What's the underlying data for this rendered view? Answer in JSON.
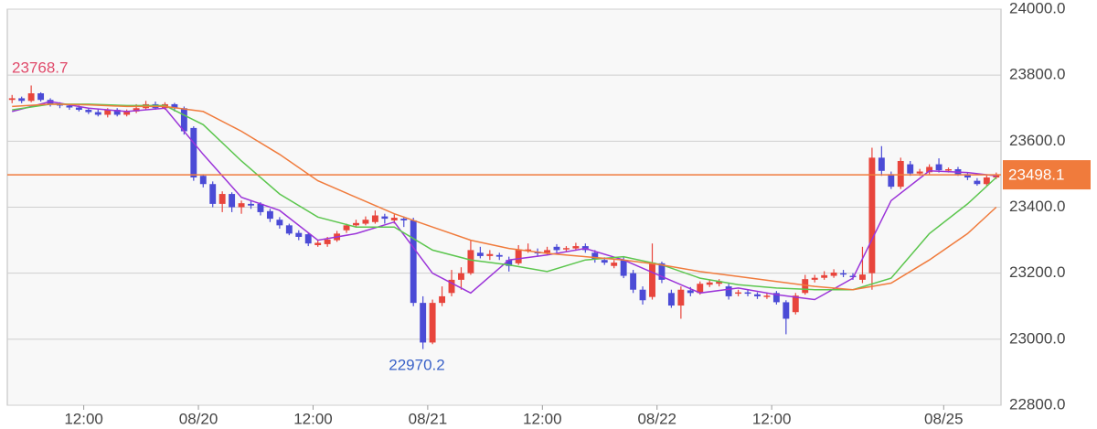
{
  "chart_data": {
    "type": "candlestick",
    "xlim": [
      0,
      104
    ],
    "xticks": [
      {
        "value": 8,
        "label": "12:00"
      },
      {
        "value": 20,
        "label": "08/20"
      },
      {
        "value": 32,
        "label": "12:00"
      },
      {
        "value": 44,
        "label": "08/21"
      },
      {
        "value": 56,
        "label": "12:00"
      },
      {
        "value": 68,
        "label": "08/22"
      },
      {
        "value": 80,
        "label": "12:00"
      },
      {
        "value": 98,
        "label": "08/25"
      }
    ],
    "ylim": [
      22800,
      24000
    ],
    "yticks": [
      {
        "value": 22800,
        "label": "22800.0"
      },
      {
        "value": 23000,
        "label": "23000.0"
      },
      {
        "value": 23200,
        "label": "23200.0"
      },
      {
        "value": 23400,
        "label": "23400.0"
      },
      {
        "value": 23600,
        "label": "23600.0"
      },
      {
        "value": 23800,
        "label": "23800.0"
      },
      {
        "value": 24000,
        "label": "24000.0"
      }
    ],
    "grid": true,
    "up_color": "#e8453c",
    "down_color": "#4b4bd6",
    "open": [
      23725,
      23730,
      23722,
      23745,
      23725,
      23712,
      23708,
      23702,
      23695,
      23688,
      23680,
      23695,
      23680,
      23690,
      23700,
      23712,
      23700,
      23712,
      23700,
      23640,
      23495,
      23470,
      23410,
      23440,
      23400,
      23410,
      23410,
      23388,
      23362,
      23345,
      23322,
      23318,
      23285,
      23288,
      23300,
      23330,
      23345,
      23350,
      23355,
      23372,
      23360,
      23365,
      23360,
      23110,
      22990,
      23110,
      23140,
      23180,
      23200,
      23262,
      23252,
      23255,
      23240,
      23230,
      23268,
      23265,
      23262,
      23280,
      23272,
      23275,
      23282,
      23262,
      23240,
      23222,
      23240,
      23200,
      23150,
      23128,
      23230,
      23140,
      23102,
      23148,
      23140,
      23165,
      23168,
      23160,
      23138,
      23142,
      23136,
      23130,
      23140,
      23112,
      23082,
      23140,
      23180,
      23186,
      23192,
      23200,
      23192,
      23180,
      23200,
      23550,
      23500,
      23462,
      23530,
      23502,
      23506,
      23530,
      23512,
      23515,
      23500,
      23480,
      23470,
      23490
    ],
    "high": [
      23740,
      23735,
      23768.7,
      23748,
      23730,
      23718,
      23712,
      23708,
      23700,
      23696,
      23700,
      23700,
      23696,
      23712,
      23722,
      23720,
      23718,
      23716,
      23705,
      23645,
      23500,
      23478,
      23448,
      23445,
      23420,
      23418,
      23415,
      23395,
      23370,
      23350,
      23330,
      23322,
      23300,
      23310,
      23328,
      23350,
      23362,
      23372,
      23390,
      23380,
      23378,
      23372,
      23368,
      23130,
      23120,
      23160,
      23210,
      23218,
      23300,
      23280,
      23270,
      23262,
      23250,
      23285,
      23290,
      23275,
      23280,
      23288,
      23282,
      23292,
      23290,
      23270,
      23248,
      23240,
      23248,
      23210,
      23160,
      23290,
      23235,
      23150,
      23160,
      23158,
      23175,
      23180,
      23182,
      23168,
      23150,
      23150,
      23142,
      23140,
      23146,
      23118,
      23140,
      23195,
      23195,
      23206,
      23212,
      23210,
      23200,
      23280,
      23580,
      23585,
      23508,
      23550,
      23540,
      23516,
      23530,
      23548,
      23520,
      23522,
      23505,
      23488,
      23498,
      23505
    ],
    "low": [
      23715,
      23715,
      23718,
      23720,
      23705,
      23700,
      23695,
      23690,
      23682,
      23675,
      23672,
      23675,
      23675,
      23685,
      23695,
      23695,
      23695,
      23690,
      23620,
      23480,
      23460,
      23400,
      23385,
      23385,
      23380,
      23395,
      23375,
      23355,
      23335,
      23315,
      23300,
      23282,
      23280,
      23280,
      23295,
      23322,
      23338,
      23345,
      23350,
      23350,
      23350,
      23340,
      23100,
      22970.2,
      22985,
      23100,
      23130,
      23150,
      23195,
      23245,
      23240,
      23240,
      23205,
      23225,
      23262,
      23250,
      23255,
      23262,
      23265,
      23268,
      23262,
      23232,
      23225,
      23215,
      23185,
      23140,
      23105,
      23120,
      23170,
      23095,
      23062,
      23130,
      23135,
      23158,
      23160,
      23120,
      23130,
      23130,
      23122,
      23122,
      23105,
      23015,
      23075,
      23135,
      23172,
      23180,
      23186,
      23188,
      23180,
      23170,
      23150,
      23495,
      23455,
      23455,
      23495,
      23495,
      23500,
      23505,
      23505,
      23495,
      23482,
      23465,
      23465,
      23485
    ],
    "close": [
      23730,
      23722,
      23745,
      23725,
      23712,
      23708,
      23702,
      23695,
      23688,
      23680,
      23695,
      23680,
      23690,
      23700,
      23712,
      23700,
      23712,
      23700,
      23630,
      23490,
      23470,
      23410,
      23440,
      23400,
      23412,
      23405,
      23385,
      23365,
      23345,
      23320,
      23310,
      23290,
      23292,
      23302,
      23320,
      23345,
      23352,
      23362,
      23375,
      23365,
      23368,
      23360,
      23110,
      22990,
      23110,
      23130,
      23180,
      23200,
      23270,
      23252,
      23258,
      23250,
      23222,
      23272,
      23272,
      23260,
      23270,
      23270,
      23276,
      23282,
      23270,
      23242,
      23232,
      23232,
      23192,
      23150,
      23118,
      23232,
      23180,
      23102,
      23150,
      23140,
      23168,
      23172,
      23176,
      23130,
      23142,
      23138,
      23130,
      23132,
      23112,
      23062,
      23132,
      23182,
      23186,
      23194,
      23202,
      23196,
      23188,
      23196,
      23550,
      23510,
      23462,
      23540,
      23502,
      23508,
      23522,
      23512,
      23515,
      23500,
      23490,
      23470,
      23490,
      23498.1
    ],
    "lines": [
      {
        "color": "#9b34d9",
        "x": [
          0.5,
          4.5,
          8.5,
          12.5,
          16.5,
          20.5,
          24.5,
          28.5,
          32.5,
          36.5,
          40.5,
          44.5,
          48.5,
          52.5,
          56.5,
          60.5,
          64.5,
          68.5,
          72.5,
          76.5,
          80.5,
          84.5,
          88.5,
          92.5,
          96.5,
          100.5,
          103.5
        ],
        "values": [
          23690,
          23720,
          23700,
          23690,
          23700,
          23560,
          23430,
          23390,
          23300,
          23320,
          23355,
          23200,
          23140,
          23240,
          23255,
          23275,
          23240,
          23190,
          23140,
          23155,
          23135,
          23120,
          23185,
          23420,
          23510,
          23505,
          23495
        ]
      },
      {
        "color": "#5cc64e",
        "x": [
          0.5,
          4.5,
          8.5,
          12.5,
          16.5,
          20.5,
          24.5,
          28.5,
          32.5,
          36.5,
          40.5,
          44.5,
          48.5,
          52.5,
          56.5,
          60.5,
          64.5,
          68.5,
          72.5,
          76.5,
          80.5,
          84.5,
          88.5,
          92.5,
          96.5,
          100.5,
          103.5
        ],
        "values": [
          23695,
          23712,
          23712,
          23708,
          23708,
          23650,
          23540,
          23440,
          23370,
          23340,
          23340,
          23270,
          23240,
          23225,
          23205,
          23240,
          23250,
          23225,
          23185,
          23165,
          23155,
          23150,
          23150,
          23185,
          23320,
          23410,
          23490
        ]
      },
      {
        "color": "#f07b3c",
        "x": [
          0.5,
          4.5,
          8.5,
          12.5,
          16.5,
          20.5,
          24.5,
          28.5,
          32.5,
          36.5,
          40.5,
          44.5,
          48.5,
          52.5,
          56.5,
          60.5,
          64.5,
          68.5,
          72.5,
          76.5,
          80.5,
          84.5,
          88.5,
          92.5,
          96.5,
          100.5,
          103.5
        ],
        "values": [
          23705,
          23712,
          23710,
          23705,
          23705,
          23690,
          23630,
          23560,
          23480,
          23430,
          23380,
          23340,
          23300,
          23275,
          23260,
          23250,
          23240,
          23225,
          23205,
          23190,
          23175,
          23160,
          23150,
          23170,
          23240,
          23320,
          23400
        ]
      }
    ],
    "last_price": 23498.1,
    "last_price_label": "23498.1",
    "last_price_color": "#f07b3c",
    "annotations": [
      {
        "text": "23768.7",
        "color": "#e04a6a"
      },
      {
        "text": "22970.2",
        "color": "#3a62c8"
      }
    ]
  }
}
